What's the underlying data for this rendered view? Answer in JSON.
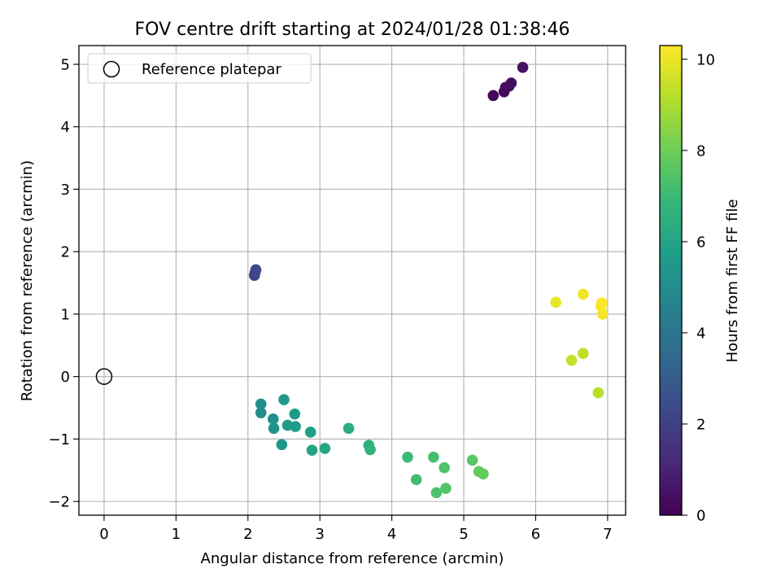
{
  "chart_data": {
    "type": "scatter",
    "title": "FOV centre drift starting at 2024/01/28 01:38:46",
    "xlabel": "Angular distance from reference (arcmin)",
    "ylabel": "Rotation from reference (arcmin)",
    "xlim": [
      -0.35,
      7.25
    ],
    "ylim": [
      -2.22,
      5.3
    ],
    "xticks": [
      0,
      1,
      2,
      3,
      4,
      5,
      6,
      7
    ],
    "xtick_labels": [
      "0",
      "1",
      "2",
      "3",
      "4",
      "5",
      "6",
      "7"
    ],
    "yticks": [
      -2,
      -1,
      0,
      1,
      2,
      3,
      4,
      5
    ],
    "ytick_labels": [
      "−2",
      "−1",
      "0",
      "1",
      "2",
      "3",
      "4",
      "5"
    ],
    "grid": true,
    "legend": {
      "position": "top-left",
      "entries": [
        "Reference platepar"
      ]
    },
    "reference_point": {
      "x": 0,
      "y": 0,
      "label": "Reference platepar",
      "marker": "hollow-circle"
    },
    "colorbar": {
      "label": "Hours from first FF file",
      "colormap": "viridis",
      "range": [
        0,
        10.3
      ],
      "ticks": [
        0,
        2,
        4,
        6,
        8,
        10
      ],
      "tick_labels": [
        "0",
        "2",
        "4",
        "6",
        "8",
        "10"
      ],
      "stops": [
        "#440154",
        "#482878",
        "#3e4989",
        "#31688e",
        "#26828e",
        "#1f9e89",
        "#35b779",
        "#6ece58",
        "#b5de2b",
        "#fde725"
      ]
    },
    "points": [
      {
        "x": 5.41,
        "y": 4.5,
        "c": 0.1
      },
      {
        "x": 5.56,
        "y": 4.56,
        "c": 0.2
      },
      {
        "x": 5.58,
        "y": 4.63,
        "c": 0.3
      },
      {
        "x": 5.63,
        "y": 4.65,
        "c": 0.35
      },
      {
        "x": 5.66,
        "y": 4.7,
        "c": 0.4
      },
      {
        "x": 5.82,
        "y": 4.95,
        "c": 0.5
      },
      {
        "x": 2.09,
        "y": 1.62,
        "c": 2.1
      },
      {
        "x": 2.1,
        "y": 1.67,
        "c": 2.2
      },
      {
        "x": 2.11,
        "y": 1.71,
        "c": 2.3
      },
      {
        "x": 2.18,
        "y": -0.44,
        "c": 5.0
      },
      {
        "x": 2.18,
        "y": -0.58,
        "c": 5.1
      },
      {
        "x": 2.35,
        "y": -0.68,
        "c": 5.2
      },
      {
        "x": 2.36,
        "y": -0.83,
        "c": 5.3
      },
      {
        "x": 2.47,
        "y": -1.09,
        "c": 5.4
      },
      {
        "x": 2.5,
        "y": -0.37,
        "c": 5.5
      },
      {
        "x": 2.55,
        "y": -0.78,
        "c": 5.6
      },
      {
        "x": 2.65,
        "y": -0.6,
        "c": 5.65
      },
      {
        "x": 2.66,
        "y": -0.8,
        "c": 5.7
      },
      {
        "x": 2.87,
        "y": -0.89,
        "c": 5.85
      },
      {
        "x": 2.89,
        "y": -1.18,
        "c": 6.0
      },
      {
        "x": 3.07,
        "y": -1.15,
        "c": 6.1
      },
      {
        "x": 3.4,
        "y": -0.83,
        "c": 6.3
      },
      {
        "x": 3.68,
        "y": -1.1,
        "c": 6.5
      },
      {
        "x": 3.7,
        "y": -1.17,
        "c": 6.6
      },
      {
        "x": 4.22,
        "y": -1.29,
        "c": 7.0
      },
      {
        "x": 4.34,
        "y": -1.65,
        "c": 7.1
      },
      {
        "x": 4.58,
        "y": -1.29,
        "c": 7.2
      },
      {
        "x": 4.62,
        "y": -1.86,
        "c": 7.3
      },
      {
        "x": 4.73,
        "y": -1.46,
        "c": 7.4
      },
      {
        "x": 4.75,
        "y": -1.79,
        "c": 7.5
      },
      {
        "x": 5.12,
        "y": -1.34,
        "c": 7.6
      },
      {
        "x": 5.21,
        "y": -1.52,
        "c": 7.7
      },
      {
        "x": 5.27,
        "y": -1.56,
        "c": 7.8
      },
      {
        "x": 6.87,
        "y": -0.26,
        "c": 9.2
      },
      {
        "x": 6.66,
        "y": 0.37,
        "c": 9.3
      },
      {
        "x": 6.5,
        "y": 0.26,
        "c": 9.4
      },
      {
        "x": 6.28,
        "y": 1.19,
        "c": 10.0
      },
      {
        "x": 6.66,
        "y": 1.32,
        "c": 10.1
      },
      {
        "x": 6.93,
        "y": 1.0,
        "c": 10.15
      },
      {
        "x": 6.91,
        "y": 1.13,
        "c": 10.2
      },
      {
        "x": 6.92,
        "y": 1.18,
        "c": 10.25
      }
    ]
  }
}
